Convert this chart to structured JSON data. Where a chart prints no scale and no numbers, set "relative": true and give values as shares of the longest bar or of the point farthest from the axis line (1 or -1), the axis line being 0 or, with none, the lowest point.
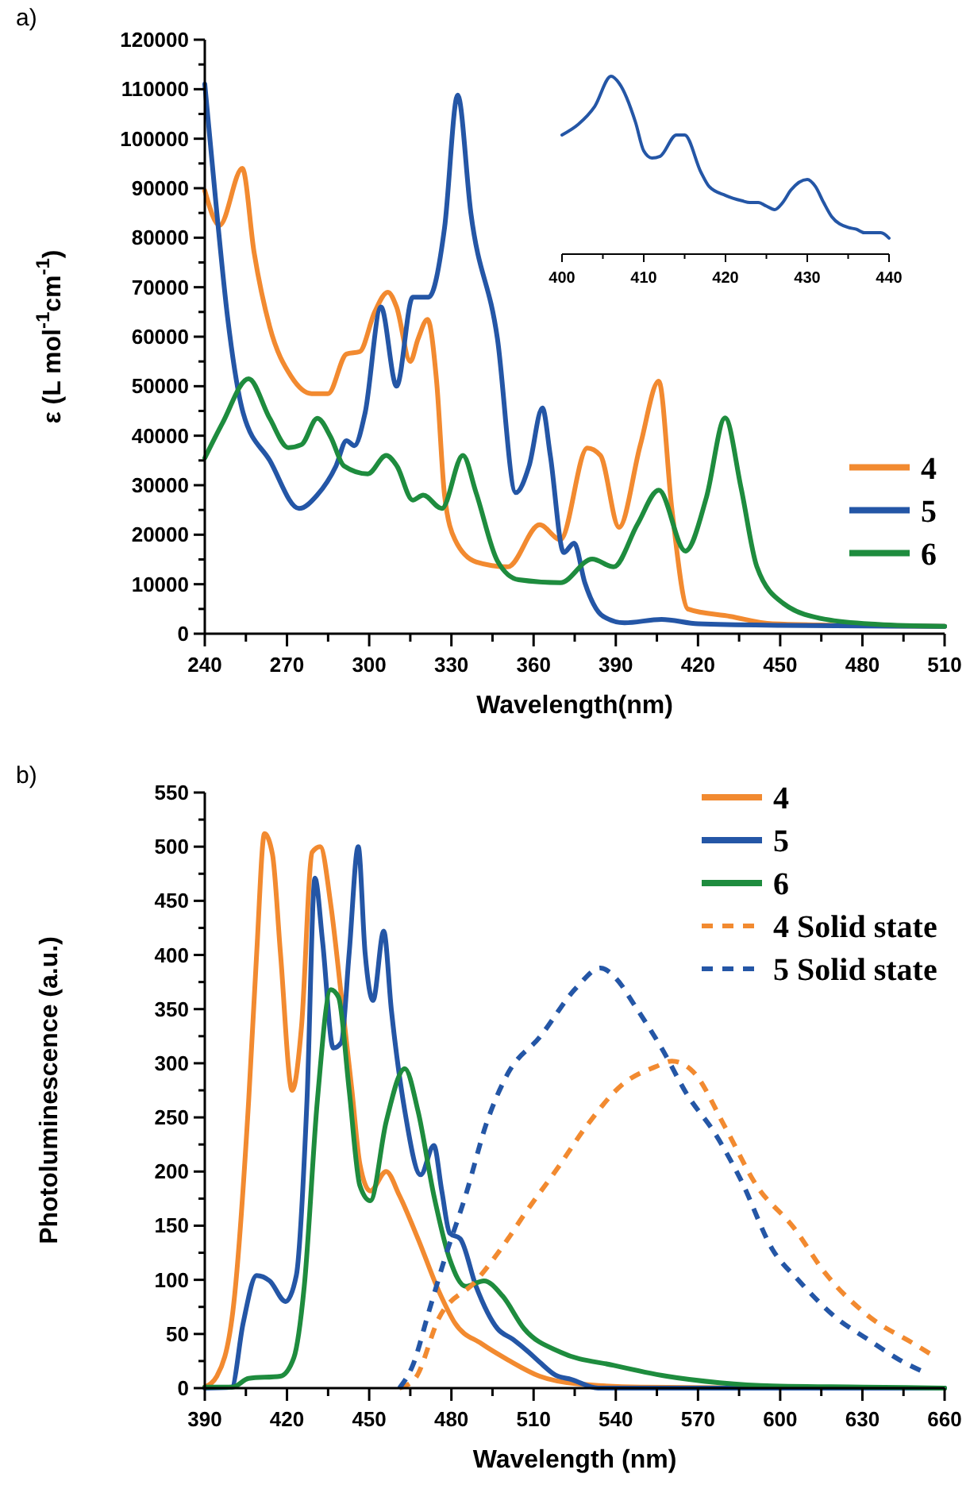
{
  "chart_data": [
    {
      "type": "line",
      "title": "a)",
      "xlabel": "Wavelength(nm)",
      "ylabel": "ε (L mol$^{-1}$cm$^{-1}$)",
      "xlim": [
        240,
        510
      ],
      "ylim": [
        0,
        120000
      ],
      "xticks": [
        240,
        {
          "value": 255,
          "label": null
        },
        270,
        {
          "value": 285,
          "label": null
        },
        300,
        {
          "value": 315,
          "label": null
        },
        330,
        {
          "value": 345,
          "label": null
        },
        360,
        {
          "value": 375,
          "label": null
        },
        390,
        {
          "value": 405,
          "label": null
        },
        420,
        {
          "value": 435,
          "label": null
        },
        450,
        {
          "value": 465,
          "label": null
        },
        480,
        {
          "value": 495,
          "label": null
        },
        510
      ],
      "yticks": [
        0,
        {
          "value": 5000,
          "label": null
        },
        10000,
        {
          "value": 15000,
          "label": null
        },
        20000,
        {
          "value": 25000,
          "label": null
        },
        30000,
        {
          "value": 35000,
          "label": null
        },
        40000,
        {
          "value": 45000,
          "label": null
        },
        50000,
        {
          "value": 55000,
          "label": null
        },
        60000,
        {
          "value": 65000,
          "label": null
        },
        70000,
        {
          "value": 75000,
          "label": null
        },
        80000,
        {
          "value": 85000,
          "label": null
        },
        90000,
        {
          "value": 95000,
          "label": null
        },
        100000,
        {
          "value": 105000,
          "label": null
        },
        110000,
        {
          "value": 115000,
          "label": null
        },
        120000
      ],
      "grid": false,
      "legend": "right",
      "line_style": "solid",
      "series": [
        {
          "name": "4",
          "color": "#f28a30",
          "x": [
            240,
            245.4,
            253.7,
            258,
            263.7,
            271.5,
            279,
            285,
            291.7,
            296.6,
            302,
            306.8,
            310,
            315,
            317.8,
            321.3,
            324.6,
            327.5,
            331.3,
            339,
            350.6,
            362.2,
            369.8,
            379.6,
            384.4,
            391.2,
            398.9,
            405.7,
            410.5,
            416.3,
            431.8,
            447.2,
            470,
            510
          ],
          "values": [
            89500,
            82500,
            94000,
            77000,
            62000,
            52000,
            48500,
            48500,
            56500,
            57000,
            65000,
            69000,
            66000,
            55000,
            59500,
            63500,
            51000,
            28000,
            19000,
            14500,
            13500,
            22000,
            19000,
            37500,
            36000,
            21500,
            38000,
            51000,
            25000,
            5000,
            3500,
            2000,
            1700,
            1500
          ]
        },
        {
          "name": "5",
          "color": "#2456a6",
          "x": [
            240,
            244.4,
            248.3,
            254,
            263.7,
            274.4,
            281,
            287.9,
            291.7,
            294.6,
            298.5,
            304.3,
            310,
            315.9,
            321.7,
            327.5,
            332.3,
            337.1,
            346.8,
            353.5,
            358.4,
            363.2,
            366.1,
            371,
            374.8,
            378.7,
            385.4,
            393.2,
            406.7,
            420,
            450,
            510
          ],
          "values": [
            111000,
            85000,
            64000,
            44600,
            35000,
            25300,
            28000,
            33900,
            39000,
            38000,
            44600,
            66000,
            50000,
            68000,
            68000,
            82000,
            108800,
            85000,
            59600,
            28500,
            34000,
            45600,
            36000,
            16400,
            18300,
            10300,
            3500,
            2200,
            2900,
            2000,
            1700,
            1500
          ]
        },
        {
          "name": "6",
          "color": "#1e8c3e",
          "x": [
            240,
            246.4,
            256,
            263.7,
            270.5,
            275.3,
            281.1,
            285.9,
            290.8,
            299.5,
            306.2,
            310.1,
            315.9,
            319.7,
            326.5,
            334.2,
            339,
            346.8,
            354.5,
            369.8,
            381.4,
            389.2,
            397.9,
            405.7,
            415.4,
            423.1,
            429.9,
            435.7,
            441.5,
            451.2,
            466.6,
            485.6,
            510
          ],
          "values": [
            35500,
            42500,
            51500,
            43500,
            37600,
            38200,
            43500,
            39800,
            33900,
            32300,
            36000,
            33900,
            27000,
            28000,
            25300,
            36000,
            28500,
            14700,
            10900,
            10300,
            15100,
            13500,
            22100,
            29000,
            16700,
            27600,
            43600,
            29500,
            13500,
            6100,
            2900,
            1900,
            1500
          ]
        }
      ]
    },
    {
      "type": "line",
      "relative": true,
      "xlim": [
        400,
        440
      ],
      "xticks": [
        400,
        {
          "value": 405,
          "label": null
        },
        410,
        {
          "value": 415,
          "label": null
        },
        420,
        {
          "value": 425,
          "label": null
        },
        430,
        {
          "value": 435,
          "label": null
        },
        440
      ],
      "tick_labels": "x",
      "series": [
        {
          "color": "#2456a6",
          "x": [
            400,
            402,
            404,
            406,
            407,
            409,
            410,
            411,
            412,
            414,
            415,
            417,
            418,
            420,
            422,
            423,
            424,
            425,
            426,
            427,
            428,
            430,
            431,
            432,
            433,
            435,
            436,
            437,
            439,
            440
          ],
          "values": [
            0.67,
            0.73,
            0.83,
            1,
            0.96,
            0.74,
            0.58,
            0.54,
            0.55,
            0.67,
            0.67,
            0.46,
            0.38,
            0.33,
            0.3,
            0.29,
            0.29,
            0.27,
            0.25,
            0.29,
            0.36,
            0.42,
            0.38,
            0.29,
            0.21,
            0.15,
            0.14,
            0.12,
            0.12,
            0.09
          ]
        }
      ]
    },
    {
      "type": "line",
      "title": "b)",
      "xlabel": "Wavelength (nm)",
      "ylabel": "Photoluminescence (a.u.)",
      "xlim": [
        390,
        660
      ],
      "ylim": [
        0,
        550
      ],
      "xticks": [
        390,
        {
          "value": 405,
          "label": null
        },
        420,
        {
          "value": 435,
          "label": null
        },
        450,
        {
          "value": 465,
          "label": null
        },
        480,
        {
          "value": 495,
          "label": null
        },
        510,
        {
          "value": 525,
          "label": null
        },
        540,
        {
          "value": 555,
          "label": null
        },
        570,
        {
          "value": 585,
          "label": null
        },
        600,
        {
          "value": 615,
          "label": null
        },
        630,
        {
          "value": 645,
          "label": null
        },
        660
      ],
      "yticks": [
        0,
        {
          "value": 25,
          "label": null
        },
        50,
        {
          "value": 75,
          "label": null
        },
        100,
        {
          "value": 125,
          "label": null
        },
        150,
        {
          "value": 175,
          "label": null
        },
        200,
        {
          "value": 225,
          "label": null
        },
        250,
        {
          "value": 275,
          "label": null
        },
        300,
        {
          "value": 325,
          "label": null
        },
        350,
        {
          "value": 375,
          "label": null
        },
        400,
        {
          "value": 425,
          "label": null
        },
        450,
        {
          "value": 475,
          "label": null
        },
        500,
        {
          "value": 525,
          "label": null
        },
        550
      ],
      "grid": false,
      "legend": "top right",
      "series": [
        {
          "name": "4",
          "color": "#f28a30",
          "line_style": "solid",
          "x": [
            390,
            394.4,
            400.2,
            406,
            408.9,
            411.8,
            414.7,
            417.6,
            421.9,
            425.3,
            429.2,
            432.1,
            436,
            439.8,
            443.7,
            446.6,
            450.4,
            456.2,
            461,
            467.8,
            475.5,
            481.3,
            491,
            500.7,
            512.2,
            525.7,
            548.9,
            600,
            660
          ],
          "values": [
            1,
            11,
            70,
            265,
            400,
            512,
            493,
            402,
            275,
            334,
            495,
            500,
            446,
            363,
            275,
            207,
            182,
            200,
            178,
            138,
            89,
            60,
            41,
            26,
            11,
            4,
            1,
            0,
            0
          ]
        },
        {
          "name": "5",
          "color": "#2456a6",
          "line_style": "solid",
          "x": [
            390,
            399.8,
            404,
            408.9,
            413.7,
            419.5,
            423.4,
            427.3,
            430.2,
            433,
            436.9,
            439.8,
            442.7,
            446,
            448.5,
            451.4,
            455.3,
            458.1,
            463,
            468.8,
            473.6,
            476.5,
            479.4,
            483.2,
            489,
            496.8,
            502.5,
            508.3,
            512.2,
            518,
            523.8,
            533.5,
            600,
            660
          ],
          "values": [
            0,
            1,
            60,
            104,
            99,
            80,
            104,
            266,
            471,
            412,
            314,
            319,
            402,
            500,
            402,
            358,
            422,
            349,
            256,
            197,
            224,
            182,
            143,
            138,
            94,
            55,
            45,
            33,
            24,
            12,
            8,
            0,
            0,
            0
          ]
        },
        {
          "name": "6",
          "color": "#1e8c3e",
          "line_style": "solid",
          "x": [
            390,
            400.2,
            406,
            417.6,
            422.5,
            426.3,
            431.1,
            436,
            438.8,
            442.7,
            446.6,
            450.4,
            456.2,
            463,
            467.8,
            473.6,
            479.4,
            485.2,
            491.9,
            498.7,
            506.5,
            520,
            539.3,
            558.6,
            577.9,
            597.2,
            630,
            660
          ],
          "values": [
            1,
            1,
            9,
            11,
            28,
            94,
            266,
            368,
            361,
            275,
            187,
            173,
            246,
            295,
            256,
            178,
            119,
            94,
            99,
            85,
            55,
            33,
            21,
            11,
            5,
            2,
            1,
            0
          ]
        },
        {
          "name": "4 Solid state",
          "color": "#f28a30",
          "line_style": "dashed",
          "x": [
            461,
            466.8,
            475.5,
            489,
            500.7,
            506.5,
            519,
            529.6,
            542.2,
            554.7,
            560.5,
            568.3,
            579.9,
            591.4,
            605,
            616.5,
            632,
            649.4,
            657.1
          ],
          "values": [
            0,
            9,
            65,
            99,
            138,
            160,
            204,
            243,
            280,
            297,
            302,
            292,
            241,
            187,
            148,
            106,
            67,
            40,
            28
          ]
        },
        {
          "name": "5 Solid state",
          "color": "#2456a6",
          "line_style": "dashed",
          "x": [
            461,
            465.9,
            471.7,
            477.5,
            485.2,
            493,
            500.7,
            512.2,
            525.7,
            534.4,
            540.2,
            547,
            556.7,
            566.3,
            576,
            585.7,
            597.2,
            606.9,
            620.4,
            632,
            643.6,
            653.2
          ],
          "values": [
            0,
            21,
            70,
            119,
            178,
            246,
            291,
            324,
            370,
            388,
            378,
            353,
            314,
            270,
            236,
            192,
            128,
            99,
            65,
            45,
            26,
            14
          ]
        }
      ]
    }
  ]
}
